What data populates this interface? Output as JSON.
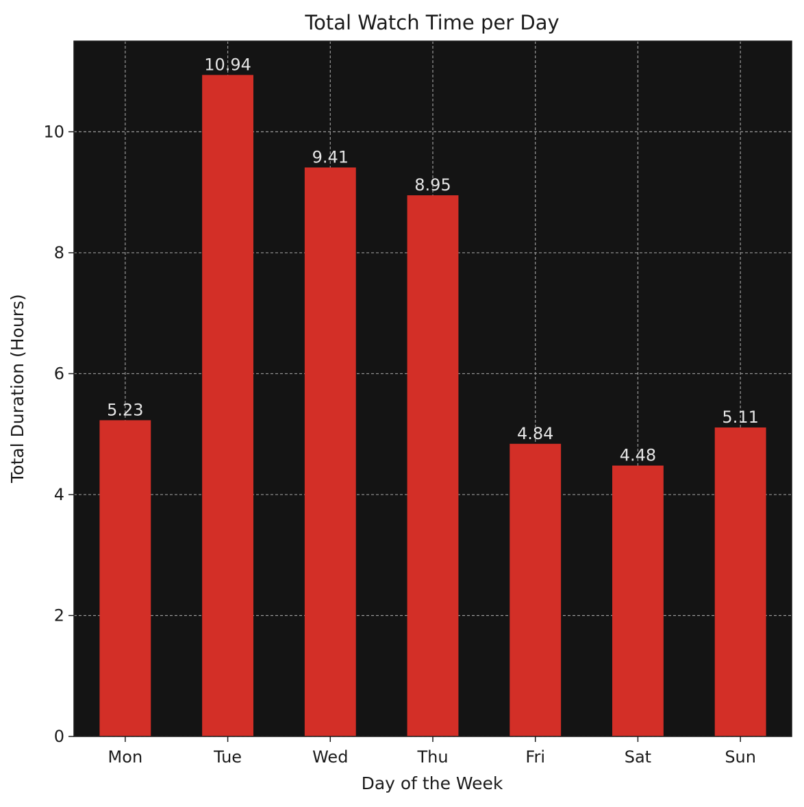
{
  "chart_data": {
    "type": "bar",
    "title": "Total Watch Time per Day",
    "xlabel": "Day of the Week",
    "ylabel": "Total Duration (Hours)",
    "categories": [
      "Mon",
      "Tue",
      "Wed",
      "Thu",
      "Fri",
      "Sat",
      "Sun"
    ],
    "values": [
      5.23,
      10.94,
      9.41,
      8.95,
      4.84,
      4.48,
      5.11
    ],
    "value_labels": [
      "5.23",
      "10.94",
      "9.41",
      "8.95",
      "4.84",
      "4.48",
      "5.11"
    ],
    "yticks": [
      0,
      2,
      4,
      6,
      8,
      10
    ],
    "ytick_labels": [
      "0",
      "2",
      "4",
      "6",
      "8",
      "10"
    ],
    "ylim": [
      0,
      11.5
    ],
    "grid": true,
    "colors": {
      "bar": "#d32f27",
      "plot_background": "#141414",
      "grid": "#9a9a9a",
      "bar_label": "#e6e6e6",
      "text": "#1a1a1a"
    }
  }
}
